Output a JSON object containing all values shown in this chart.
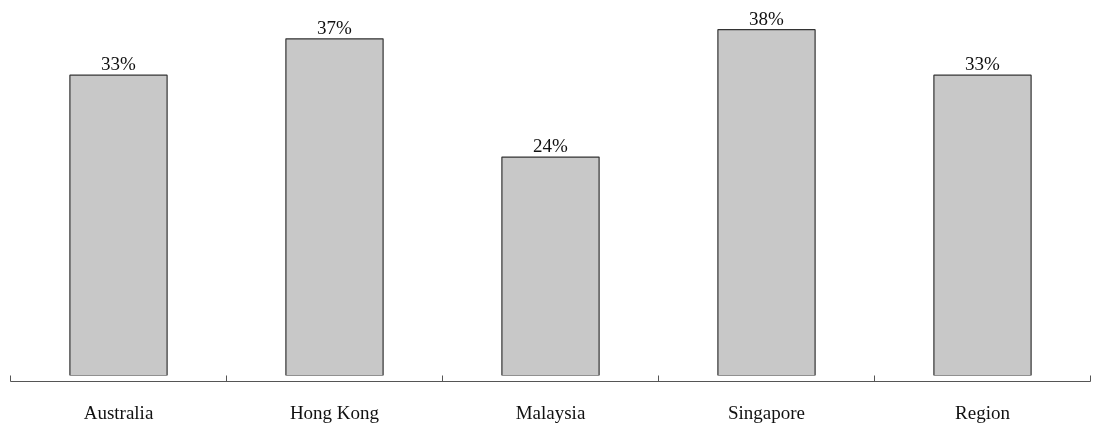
{
  "chart_data": {
    "type": "bar",
    "categories": [
      "Australia",
      "Hong Kong",
      "Malaysia",
      "Singapore",
      "Region"
    ],
    "values": [
      33,
      37,
      24,
      38,
      33
    ],
    "value_labels": [
      "33%",
      "37%",
      "24%",
      "38%",
      "33%"
    ],
    "color": "#c8c8c8",
    "grid": false
  }
}
